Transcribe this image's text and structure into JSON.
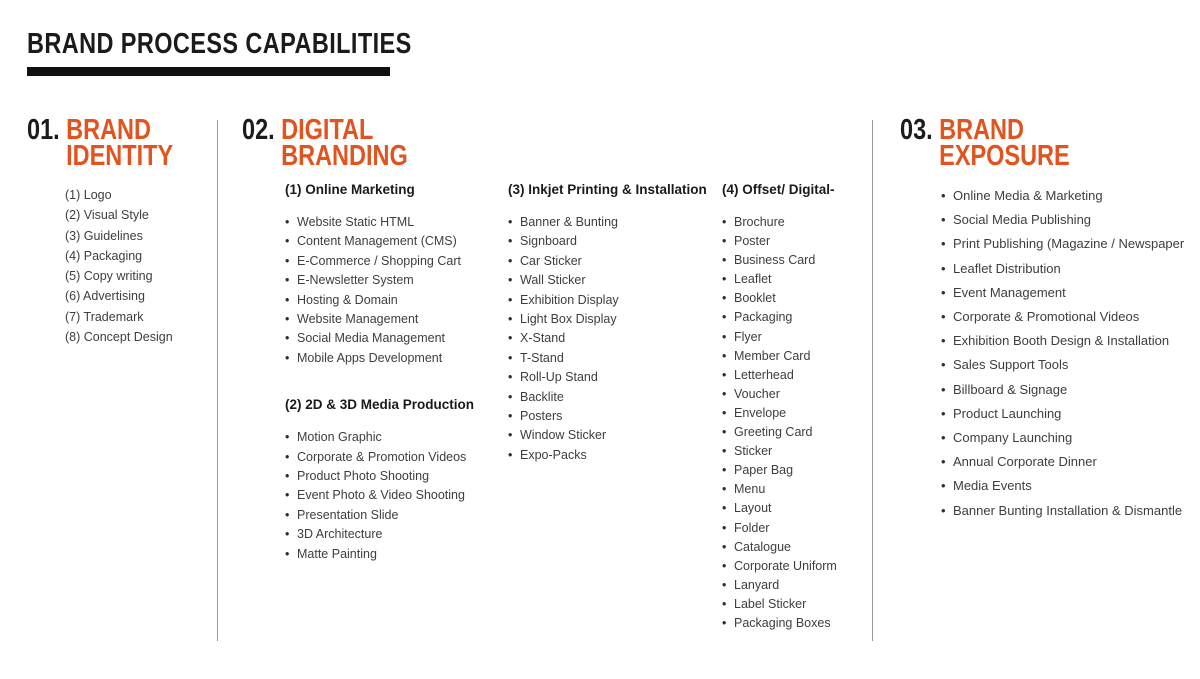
{
  "header": {
    "title": "BRAND PROCESS CAPABILITIES"
  },
  "colors": {
    "accent_orange": "#e2531d",
    "title_black": "#1b1b1b",
    "body_gray": "#3e3e3e",
    "divider_gray": "#9a9a9a"
  },
  "sections": [
    {
      "number": "01.",
      "title_lines": [
        "BRAND",
        "IDENTITY"
      ],
      "items": [
        "(1) Logo",
        "(2) Visual Style",
        "(3) Guidelines",
        "(4) Packaging",
        "(5) Copy writing",
        "(6) Advertising",
        "(7) Trademark",
        "(8) Concept Design"
      ]
    },
    {
      "number": "02.",
      "title_lines": [
        "DIGITAL",
        "BRANDING"
      ],
      "groups": [
        {
          "heading": "(1) Online Marketing",
          "items": [
            "Website Static HTML",
            "Content Management (CMS)",
            "E-Commerce / Shopping Cart",
            "E-Newsletter System",
            "Hosting & Domain",
            "Website Management",
            "Social Media Management",
            "Mobile Apps Development"
          ]
        },
        {
          "heading": "(2) 2D & 3D Media Production",
          "items": [
            "Motion Graphic",
            "Corporate & Promotion Videos",
            "Product Photo Shooting",
            "Event Photo & Video Shooting",
            "Presentation Slide",
            "3D Architecture",
            "Matte Painting"
          ]
        },
        {
          "heading": "(3) Inkjet Printing & Installation",
          "items": [
            "Banner & Bunting",
            "Signboard",
            "Car Sticker",
            "Wall Sticker",
            "Exhibition Display",
            "Light Box Display",
            "X-Stand",
            "T-Stand",
            "Roll-Up Stand",
            "Backlite",
            "Posters",
            "Window Sticker",
            "Expo-Packs"
          ]
        },
        {
          "heading": "(4) Offset/ Digital-",
          "items": [
            "Brochure",
            "Poster",
            "Business Card",
            "Leaflet",
            "Booklet",
            "Packaging",
            "Flyer",
            "Member Card",
            "Letterhead",
            "Voucher",
            "Envelope",
            "Greeting Card",
            "Sticker",
            "Paper Bag",
            "Menu",
            "Layout",
            "Folder",
            "Catalogue",
            "Corporate Uniform",
            "Lanyard",
            "Label Sticker",
            "Packaging Boxes"
          ]
        }
      ]
    },
    {
      "number": "03.",
      "title_lines": [
        "BRAND",
        "EXPOSURE"
      ],
      "items": [
        "Online Media & Marketing",
        "Social Media Publishing",
        "Print Publishing (Magazine / Newspaper",
        "Leaflet Distribution",
        "Event Management",
        "Corporate & Promotional Videos",
        "Exhibition Booth Design & Installation",
        "Sales Support Tools",
        "Billboard & Signage",
        "Product Launching",
        "Company Launching",
        "Annual Corporate Dinner",
        "Media Events",
        "Banner Bunting Installation & Dismantle"
      ]
    }
  ]
}
